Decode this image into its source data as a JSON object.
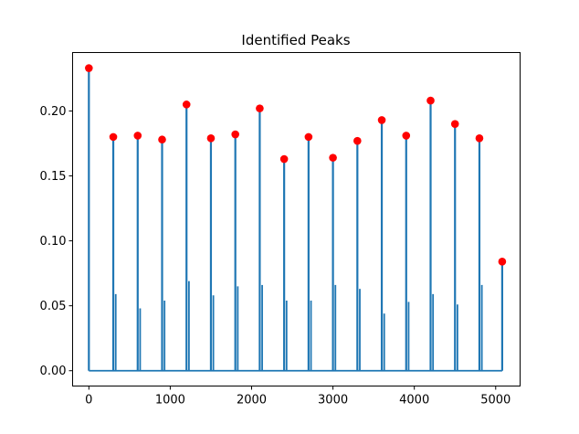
{
  "chart_data": {
    "type": "line",
    "title": "Identified Peaks",
    "xlabel": "",
    "ylabel": "",
    "xlim": [
      -200,
      5300
    ],
    "ylim": [
      -0.0118,
      0.245
    ],
    "xticks": [
      0,
      1000,
      2000,
      3000,
      4000,
      5000
    ],
    "xtick_labels": [
      "0",
      "1000",
      "2000",
      "3000",
      "4000",
      "5000"
    ],
    "yticks": [
      0.0,
      0.05,
      0.1,
      0.15,
      0.2
    ],
    "ytick_labels": [
      "0.00",
      "0.05",
      "0.10",
      "0.15",
      "0.20"
    ],
    "grid": false,
    "signal_color": "#1f77b4",
    "peak_color": "#ff0000",
    "signal_extent": [
      0,
      5080
    ],
    "peaks": [
      {
        "x": 0,
        "y": 0.233
      },
      {
        "x": 300,
        "y": 0.18
      },
      {
        "x": 600,
        "y": 0.181
      },
      {
        "x": 900,
        "y": 0.178
      },
      {
        "x": 1200,
        "y": 0.205
      },
      {
        "x": 1500,
        "y": 0.179
      },
      {
        "x": 1800,
        "y": 0.182
      },
      {
        "x": 2100,
        "y": 0.202
      },
      {
        "x": 2400,
        "y": 0.163
      },
      {
        "x": 2700,
        "y": 0.18
      },
      {
        "x": 3000,
        "y": 0.164
      },
      {
        "x": 3300,
        "y": 0.177
      },
      {
        "x": 3600,
        "y": 0.193
      },
      {
        "x": 3900,
        "y": 0.181
      },
      {
        "x": 4200,
        "y": 0.208
      },
      {
        "x": 4500,
        "y": 0.19
      },
      {
        "x": 4800,
        "y": 0.179
      },
      {
        "x": 5080,
        "y": 0.084
      }
    ],
    "secondary_spikes": [
      {
        "x": 330,
        "y": 0.059
      },
      {
        "x": 630,
        "y": 0.048
      },
      {
        "x": 930,
        "y": 0.054
      },
      {
        "x": 1230,
        "y": 0.069
      },
      {
        "x": 1530,
        "y": 0.058
      },
      {
        "x": 1830,
        "y": 0.065
      },
      {
        "x": 2130,
        "y": 0.066
      },
      {
        "x": 2430,
        "y": 0.054
      },
      {
        "x": 2730,
        "y": 0.054
      },
      {
        "x": 3030,
        "y": 0.066
      },
      {
        "x": 3330,
        "y": 0.063
      },
      {
        "x": 3630,
        "y": 0.044
      },
      {
        "x": 3930,
        "y": 0.053
      },
      {
        "x": 4230,
        "y": 0.059
      },
      {
        "x": 4530,
        "y": 0.051
      },
      {
        "x": 4830,
        "y": 0.066
      }
    ]
  }
}
